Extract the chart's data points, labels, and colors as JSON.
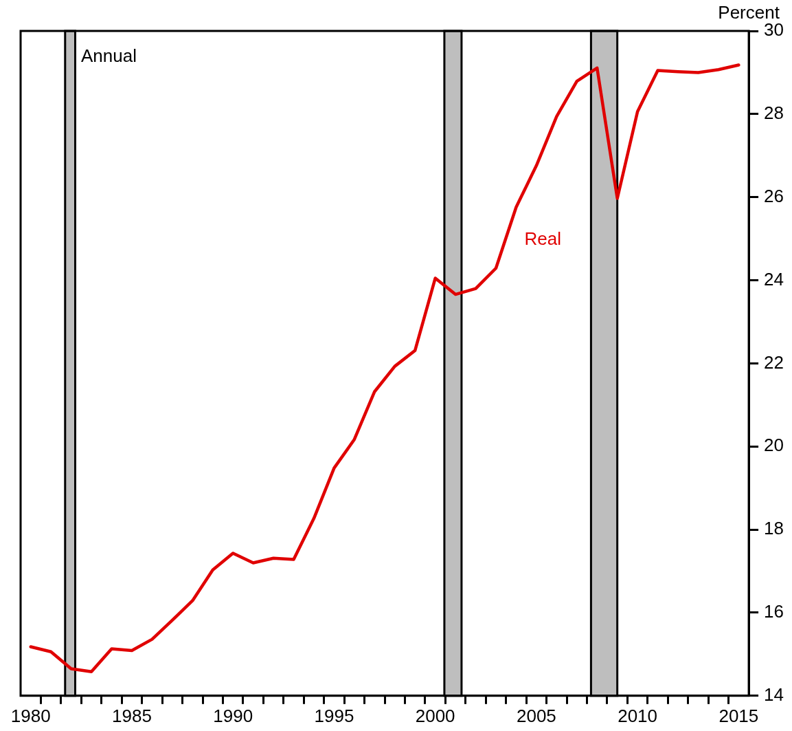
{
  "chart_data": {
    "type": "line",
    "ylabel": "Percent",
    "annotations": [
      "Annual"
    ],
    "x": [
      1980,
      1981,
      1982,
      1983,
      1984,
      1985,
      1986,
      1987,
      1988,
      1989,
      1990,
      1991,
      1992,
      1993,
      1994,
      1995,
      1996,
      1997,
      1998,
      1999,
      2000,
      2001,
      2002,
      2003,
      2004,
      2005,
      2006,
      2007,
      2008,
      2009,
      2010,
      2011,
      2012,
      2013,
      2014,
      2015
    ],
    "series": [
      {
        "name": "Real",
        "color": "#e00000",
        "values": [
          15.18,
          15.06,
          14.65,
          14.58,
          15.13,
          15.09,
          15.36,
          15.82,
          16.29,
          17.03,
          17.43,
          17.2,
          17.31,
          17.28,
          18.27,
          19.48,
          20.17,
          21.32,
          21.93,
          22.31,
          24.05,
          23.66,
          23.8,
          24.29,
          25.76,
          26.76,
          27.94,
          28.79,
          29.11,
          25.97,
          28.06,
          29.05,
          29.02,
          29.0,
          29.07,
          29.18
        ]
      }
    ],
    "xlim": [
      1979.5,
      2015.5
    ],
    "xticks": [
      1980,
      {
        "value": 1980.5,
        "label": null
      },
      {
        "value": 1981.5,
        "label": null
      },
      {
        "value": 1982.5,
        "label": null
      },
      {
        "value": 1983.5,
        "label": null
      },
      {
        "value": 1984.5,
        "label": null
      },
      1985,
      {
        "value": 1985.5,
        "label": null
      },
      {
        "value": 1986.5,
        "label": null
      },
      {
        "value": 1987.5,
        "label": null
      },
      {
        "value": 1988.5,
        "label": null
      },
      {
        "value": 1989.5,
        "label": null
      },
      1990,
      {
        "value": 1990.5,
        "label": null
      },
      {
        "value": 1991.5,
        "label": null
      },
      {
        "value": 1992.5,
        "label": null
      },
      {
        "value": 1993.5,
        "label": null
      },
      {
        "value": 1994.5,
        "label": null
      },
      1995,
      {
        "value": 1995.5,
        "label": null
      },
      {
        "value": 1996.5,
        "label": null
      },
      {
        "value": 1997.5,
        "label": null
      },
      {
        "value": 1998.5,
        "label": null
      },
      {
        "value": 1999.5,
        "label": null
      },
      2000,
      {
        "value": 2000.5,
        "label": null
      },
      {
        "value": 2001.5,
        "label": null
      },
      {
        "value": 2002.5,
        "label": null
      },
      {
        "value": 2003.5,
        "label": null
      },
      {
        "value": 2004.5,
        "label": null
      },
      2005,
      {
        "value": 2005.5,
        "label": null
      },
      {
        "value": 2006.5,
        "label": null
      },
      {
        "value": 2007.5,
        "label": null
      },
      {
        "value": 2008.5,
        "label": null
      },
      {
        "value": 2009.5,
        "label": null
      },
      2010,
      {
        "value": 2010.5,
        "label": null
      },
      {
        "value": 2011.5,
        "label": null
      },
      {
        "value": 2012.5,
        "label": null
      },
      {
        "value": 2013.5,
        "label": null
      },
      {
        "value": 2014.5,
        "label": null
      },
      2015
    ],
    "ylim": [
      14,
      30
    ],
    "yticks": [
      14,
      16,
      18,
      20,
      22,
      24,
      26,
      28,
      30
    ],
    "bands": [
      {
        "axis": "x",
        "from": 1981.7,
        "to": 1982.2,
        "color": "#bebebe"
      },
      {
        "axis": "x",
        "from": 2000.45,
        "to": 2001.3,
        "color": "#bebebe"
      },
      {
        "axis": "x",
        "from": 2007.7,
        "to": 2009.0,
        "color": "#bebebe"
      }
    ],
    "grid": false,
    "legend": false,
    "marker": "none",
    "line_style": "solid"
  }
}
